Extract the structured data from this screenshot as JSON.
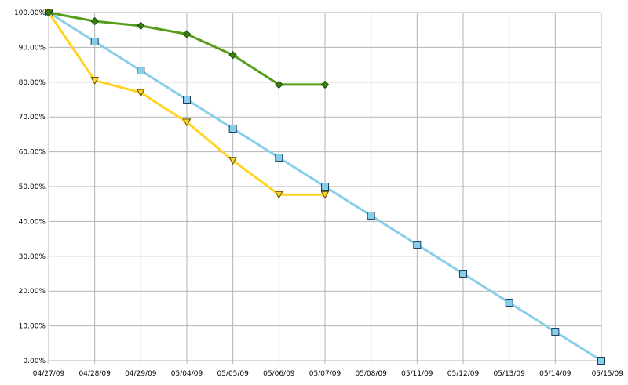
{
  "chart_data": {
    "type": "line",
    "title": "",
    "xlabel": "",
    "ylabel": "",
    "categories": [
      "04/27/09",
      "04/28/09",
      "04/29/09",
      "05/04/09",
      "05/05/09",
      "05/06/09",
      "05/07/09",
      "05/08/09",
      "05/11/09",
      "05/12/09",
      "05/13/09",
      "05/14/09",
      "05/15/09"
    ],
    "y_ticks": [
      "0.00%",
      "10.00%",
      "20.00%",
      "30.00%",
      "40.00%",
      "50.00%",
      "60.00%",
      "70.00%",
      "80.00%",
      "90.00%",
      "100.00%"
    ],
    "ylim": [
      0,
      100
    ],
    "grid": true,
    "legend": "none",
    "series": [
      {
        "color": "#87ceeb",
        "marker": "square",
        "marker_fill": "#87ceeb",
        "values": [
          100,
          91.67,
          83.33,
          75,
          66.67,
          58.33,
          50,
          41.67,
          33.33,
          25,
          16.67,
          8.33,
          0
        ]
      },
      {
        "color": "#ffd320",
        "marker": "triangle-down",
        "marker_fill": "#ffd320",
        "values": [
          100,
          80.5,
          77,
          68.5,
          57.5,
          47.7,
          47.7,
          null,
          null,
          null,
          null,
          null,
          null
        ]
      },
      {
        "color": "#579d1c",
        "marker": "diamond",
        "marker_fill": "#3a7f0d",
        "values": [
          100,
          97.5,
          96.2,
          93.8,
          87.8,
          79.3,
          79.3,
          null,
          null,
          null,
          null,
          null,
          null
        ]
      }
    ]
  }
}
